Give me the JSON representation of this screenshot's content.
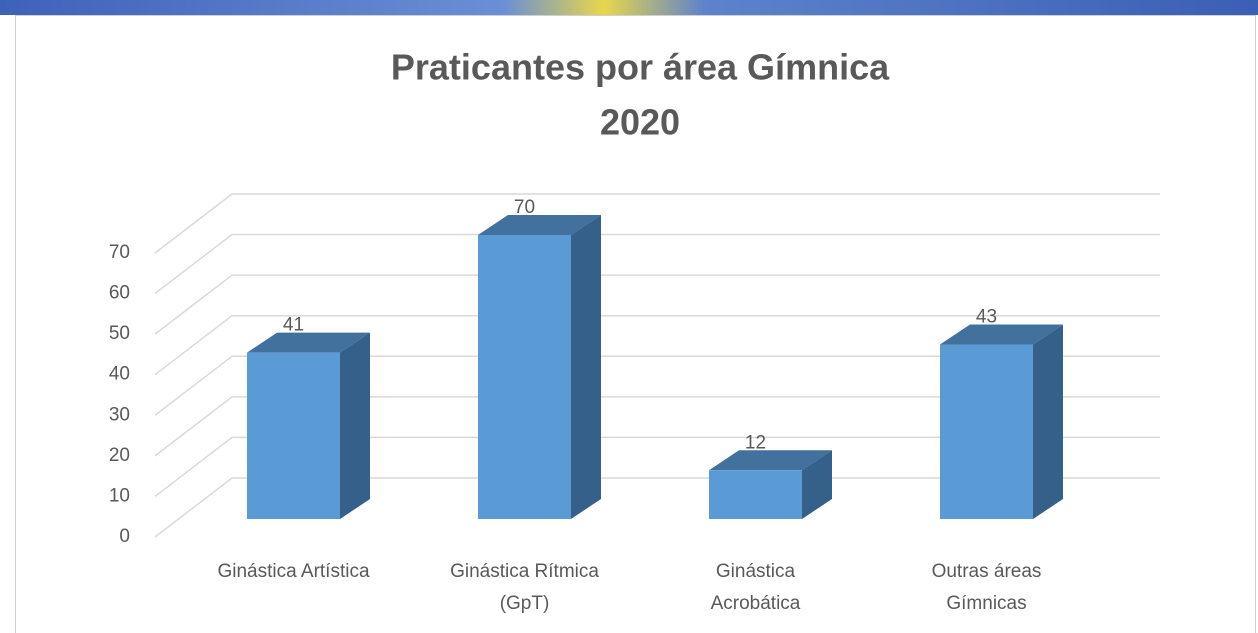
{
  "chart_data": {
    "type": "bar3d",
    "title": "Praticantes por área Gímnica",
    "subtitle": "2020",
    "categories": [
      "Ginástica Artística",
      "Ginástica Rítmica (GpT)",
      "Ginástica Acrobática",
      "Outras áreas Gímnicas"
    ],
    "values": [
      41,
      70,
      12,
      43
    ],
    "color": "#5b9bd5",
    "ylim": [
      0,
      80
    ],
    "yticks": [
      0,
      10,
      20,
      30,
      40,
      50,
      60,
      70
    ],
    "grid": true
  }
}
